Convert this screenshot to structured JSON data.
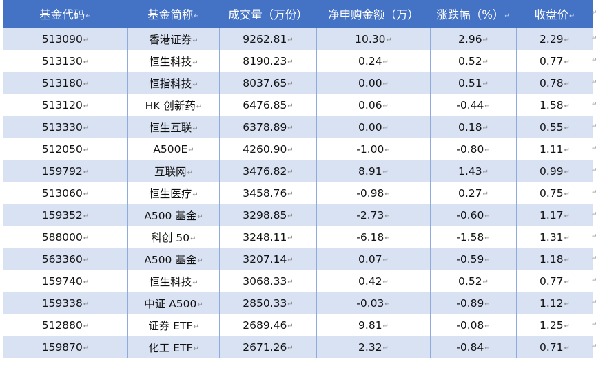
{
  "table": {
    "headers": [
      "基金代码",
      "基金简称",
      "成交量（万份）",
      "净申购金额（万）",
      "涨跌幅（%）",
      "收盘价"
    ],
    "rows": [
      [
        "513090",
        "香港证券",
        "9262.81",
        "10.30",
        "2.96",
        "2.29"
      ],
      [
        "513130",
        "恒生科技",
        "8190.23",
        "0.24",
        "0.52",
        "0.77"
      ],
      [
        "513180",
        "恒指科技",
        "8037.65",
        "0.00",
        "0.51",
        "0.78"
      ],
      [
        "513120",
        "HK 创新药",
        "6476.85",
        "0.06",
        "-0.44",
        "1.58"
      ],
      [
        "513330",
        "恒生互联",
        "6378.89",
        "0.00",
        "0.18",
        "0.55"
      ],
      [
        "512050",
        "A500E",
        "4260.90",
        "-1.00",
        "-0.80",
        "1.11"
      ],
      [
        "159792",
        "互联网",
        "3476.82",
        "8.91",
        "1.43",
        "0.99"
      ],
      [
        "513060",
        "恒生医疗",
        "3458.76",
        "-0.98",
        "0.27",
        "0.75"
      ],
      [
        "159352",
        "A500 基金",
        "3298.85",
        "-2.73",
        "-0.60",
        "1.17"
      ],
      [
        "588000",
        "科创 50",
        "3248.11",
        "-6.18",
        "-1.58",
        "1.31"
      ],
      [
        "563360",
        "A500 基金",
        "3207.14",
        "0.07",
        "-0.59",
        "1.18"
      ],
      [
        "159740",
        "恒生科技",
        "3068.33",
        "0.42",
        "0.52",
        "0.77"
      ],
      [
        "159338",
        "中证 A500",
        "2850.33",
        "-0.03",
        "-0.89",
        "1.12"
      ],
      [
        "512880",
        "证券 ETF",
        "2689.46",
        "9.81",
        "-0.08",
        "1.25"
      ],
      [
        "159870",
        "化工 ETF",
        "2671.26",
        "2.32",
        "-0.84",
        "0.71"
      ]
    ]
  },
  "colors": {
    "header_bg": "#4472c4",
    "header_text": "#ffffff",
    "band_row": "#d9e2f3",
    "plain_row": "#ffffff",
    "grid_line": "#8faadc"
  },
  "icons": {
    "paragraph_mark": "return-arrow-icon"
  }
}
